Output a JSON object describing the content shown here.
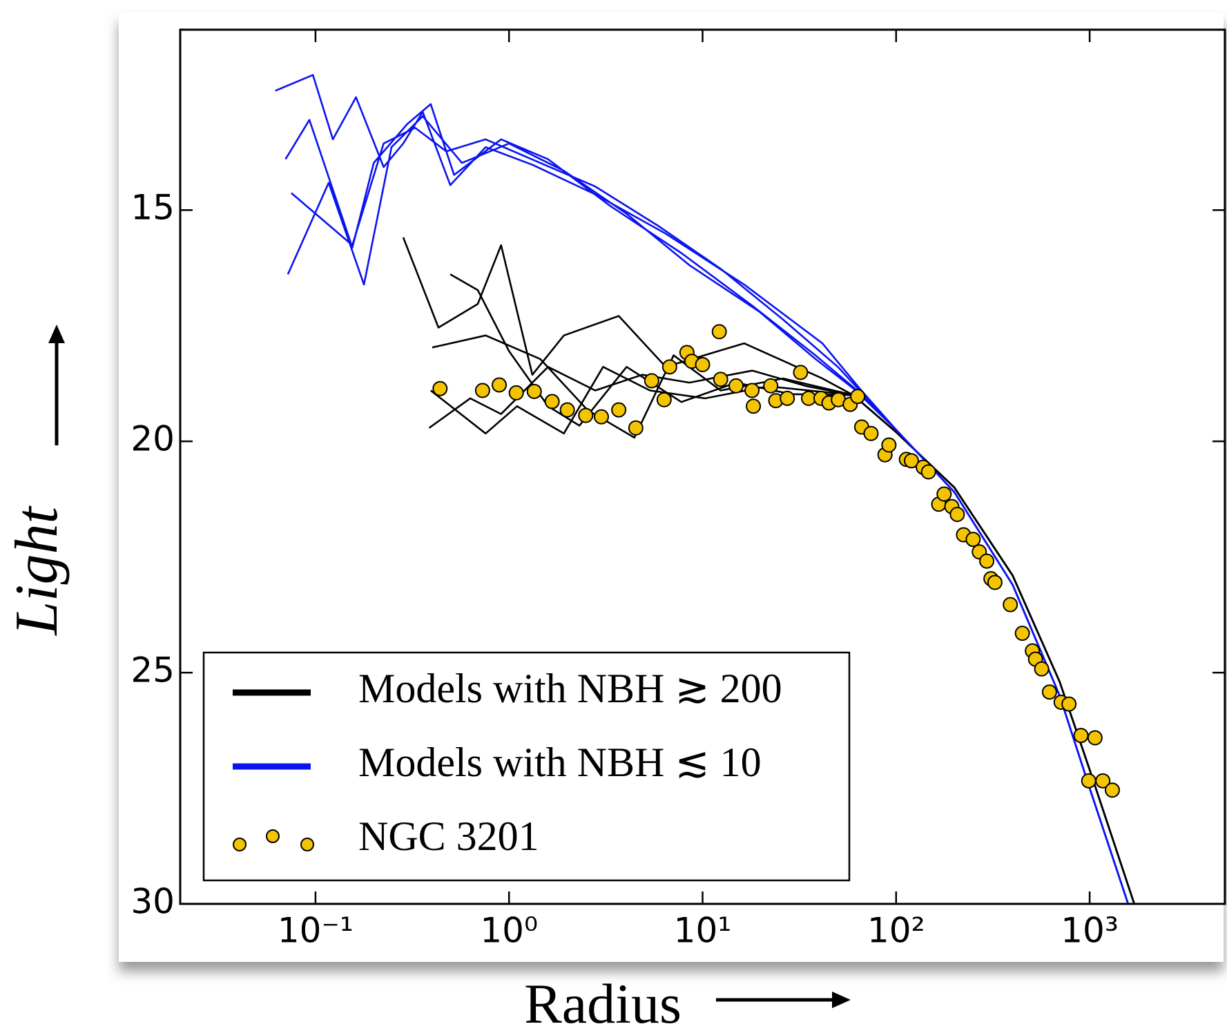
{
  "chart_data": {
    "type": "line",
    "x_label": "Radius",
    "y_label": "Light",
    "xscale": "log",
    "xlim": [
      0.02,
      5000
    ],
    "xticks": [
      {
        "value": 0.1,
        "label": "10⁻¹"
      },
      {
        "value": 1,
        "label": "10⁰"
      },
      {
        "value": 10,
        "label": "10¹"
      },
      {
        "value": 100,
        "label": "10²"
      },
      {
        "value": 1000,
        "label": "10³"
      }
    ],
    "ylim": [
      30,
      11.1
    ],
    "yticks": [
      15,
      20,
      25,
      30
    ],
    "legend": "lower left",
    "series": [
      {
        "name": "Models with NBH ≳ 200",
        "color": "#000000",
        "lines": [
          {
            "x": [
              0.284,
              0.432,
              0.689,
              0.91,
              1.32,
              1.92,
              3.69,
              6.45,
              16.4,
              41.6,
              60,
              100,
              200,
              400,
              700,
              1000,
              1700
            ],
            "values": [
              15.59,
              17.54,
              17.03,
              15.76,
              18.56,
              17.71,
              17.29,
              18.39,
              17.88,
              18.64,
              19.0,
              19.8,
              21.0,
              22.9,
              25.2,
              27.1,
              30
            ]
          },
          {
            "x": [
              0.387,
              0.63,
              0.91,
              1.59,
              2.79,
              4.88,
              8.54,
              18.1,
              34.6,
              60,
              100,
              200,
              400,
              700,
              1000,
              1700
            ],
            "values": [
              19.71,
              19.07,
              19.41,
              18.39,
              18.9,
              18.56,
              18.73,
              18.47,
              18.81,
              19.0,
              19.8,
              21.0,
              22.9,
              25.2,
              27.1,
              30
            ]
          },
          {
            "x": [
              0.497,
              0.689,
              1.0,
              1.59,
              2.31,
              4.05,
              7.77,
              14.9,
              28.7,
              60,
              100,
              200,
              400,
              700,
              1000,
              1700
            ],
            "values": [
              16.39,
              16.73,
              18.05,
              19.24,
              19.66,
              18.39,
              19.15,
              18.73,
              18.98,
              19.0,
              19.8,
              21.0,
              22.9,
              25.2,
              27.1,
              30
            ]
          },
          {
            "x": [
              0.394,
              0.757,
              1.1,
              1.92,
              3.06,
              5.35,
              10.3,
              21.8,
              60,
              100,
              200,
              400,
              700,
              1000,
              1700
            ],
            "values": [
              18.9,
              19.83,
              19.24,
              19.83,
              18.39,
              18.9,
              19.07,
              18.81,
              19.0,
              19.8,
              21.0,
              22.9,
              25.2,
              27.1,
              30
            ]
          },
          {
            "x": [
              0.401,
              0.757,
              1.45,
              2.54,
              4.44,
              7.09,
              12.4,
              26.1,
              60,
              100,
              200,
              400,
              700,
              1000,
              1700
            ],
            "values": [
              17.97,
              17.71,
              18.22,
              19.32,
              19.92,
              18.14,
              18.9,
              18.64,
              19.0,
              19.8,
              21.0,
              22.9,
              25.2,
              27.1,
              30
            ]
          }
        ]
      },
      {
        "name": "Models with NBH ≲ 10",
        "color": "#0a14f0",
        "lines": [
          {
            "x": [
              0.062,
              0.097,
              0.123,
              0.162,
              0.225,
              0.284,
              0.358,
              0.497,
              0.757,
              1.32,
              2.79,
              6.45,
              16.4,
              41.6,
              66.1,
              100,
              200,
              400,
              700,
              1000,
              1580
            ],
            "values": [
              12.42,
              12.08,
              13.47,
              12.56,
              14.07,
              13.56,
              12.88,
              14.46,
              13.64,
              14.02,
              14.66,
              15.51,
              16.61,
              17.88,
              18.9,
              19.75,
              21.1,
              23.1,
              25.5,
              27.5,
              30
            ]
          },
          {
            "x": [
              0.07,
              0.093,
              0.155,
              0.2,
              0.298,
              0.394,
              0.52,
              0.91,
              1.59,
              3.36,
              7.77,
              18.1,
              38.3,
              62.9,
              100,
              200,
              400,
              700,
              1000,
              1580
            ],
            "values": [
              13.9,
              13.05,
              15.81,
              13.98,
              13.14,
              12.71,
              14.24,
              13.47,
              13.9,
              14.92,
              15.93,
              17.07,
              18.14,
              18.9,
              19.75,
              21.1,
              23.1,
              25.5,
              27.5,
              30
            ]
          },
          {
            "x": [
              0.072,
              0.117,
              0.178,
              0.247,
              0.358,
              0.571,
              1.0,
              1.92,
              4.05,
              8.54,
              19.7,
              38.3,
              60.3,
              100,
              200,
              400,
              700,
              1000,
              1580
            ],
            "values": [
              16.39,
              14.41,
              16.61,
              13.64,
              12.97,
              13.98,
              13.56,
              14.15,
              15.08,
              16.19,
              17.2,
              18.22,
              18.86,
              19.75,
              21.1,
              23.1,
              25.5,
              27.5,
              30
            ]
          },
          {
            "x": [
              0.075,
              0.155,
              0.225,
              0.327,
              0.474,
              0.757,
              1.45,
              2.79,
              5.89,
              12.4,
              26.1,
              50,
              100,
              200,
              400,
              700,
              1000,
              1580
            ],
            "values": [
              14.63,
              15.76,
              13.56,
              13.22,
              13.73,
              13.47,
              13.98,
              14.49,
              15.34,
              16.27,
              17.37,
              18.39,
              19.75,
              21.1,
              23.1,
              25.5,
              27.5,
              30
            ]
          }
        ]
      },
      {
        "name": "NGC 3201",
        "type": "scatter",
        "color": "#f5c400",
        "x": [
          0.44,
          0.73,
          0.89,
          1.09,
          1.35,
          1.67,
          2.0,
          2.49,
          3.0,
          3.69,
          4.52,
          5.46,
          6.33,
          6.76,
          8.3,
          8.8,
          10,
          12.2,
          12.4,
          14.9,
          18.0,
          18.3,
          22.5,
          23.9,
          27.4,
          32.1,
          35.3,
          40.9,
          45,
          50.3,
          57.9,
          63.3,
          66.4,
          74.2,
          87.6,
          91.8,
          113,
          120,
          138,
          147,
          166,
          177,
          194,
          207,
          223,
          250,
          269,
          294,
          309,
          324,
          389,
          449,
          506,
          525,
          565,
          620,
          712,
          782,
          902,
          1066,
          989,
          1170,
          1310
        ],
        "values": [
          18.86,
          18.9,
          18.78,
          18.95,
          18.92,
          19.14,
          19.32,
          19.44,
          19.47,
          19.32,
          19.71,
          18.69,
          19.1,
          18.39,
          18.08,
          18.27,
          18.34,
          17.63,
          18.66,
          18.8,
          18.9,
          19.24,
          18.8,
          19.12,
          19.07,
          18.51,
          19.07,
          19.07,
          19.17,
          19.1,
          19.2,
          19.03,
          19.69,
          19.83,
          20.29,
          20.08,
          20.39,
          20.42,
          20.56,
          20.66,
          21.36,
          21.14,
          21.41,
          21.58,
          22.02,
          22.12,
          22.39,
          22.59,
          22.97,
          23.05,
          23.53,
          24.15,
          24.53,
          24.71,
          24.92,
          25.42,
          25.64,
          25.68,
          26.36,
          26.41,
          27.34,
          27.34,
          27.54
        ]
      }
    ]
  }
}
